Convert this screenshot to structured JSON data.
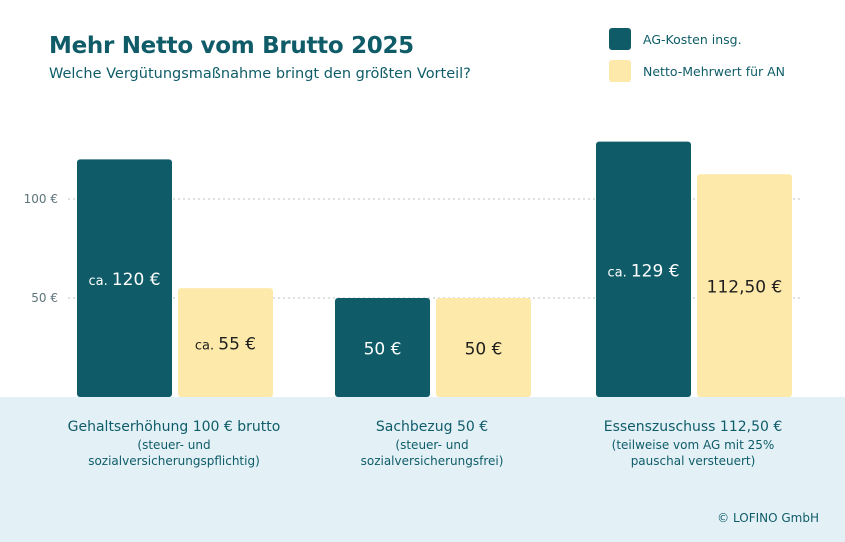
{
  "colors": {
    "primary": "#0f5c68",
    "accent": "#fde9a9",
    "panel": "#e3f1f7"
  },
  "chart_data": {
    "type": "bar",
    "title": "Mehr Netto vom Brutto 2025",
    "subtitle": "Welche Vergütungsmaßnahme bringt den größten Vorteil?",
    "categories": [
      "Gehaltserhöhung 100 € brutto",
      "Sachbezug 50 €",
      "Essenszuschuss 112,50 €"
    ],
    "category_notes": [
      "(steuer- und sozialversicherungspflichtig)",
      "(steuer- und sozialversicherungsfrei)",
      "(teilweise vom AG mit 25% pauschal versteuert)"
    ],
    "series": [
      {
        "name": "AG-Kosten insg.",
        "color": "#0f5c68",
        "label_color": "#ffffff",
        "values": [
          120,
          50,
          129
        ],
        "prefixes": [
          "ca. ",
          "",
          "ca. "
        ],
        "amounts": [
          "120 €",
          "50 €",
          "129 €"
        ]
      },
      {
        "name": "Netto-Mehrwert für AN",
        "color": "#fde9a9",
        "label_color": "#1f1f1f",
        "values": [
          55,
          50,
          112.5
        ],
        "prefixes": [
          "ca. ",
          "",
          ""
        ],
        "amounts": [
          "55 €",
          "50 €",
          "112,50 €"
        ]
      }
    ],
    "yticks": [
      50,
      100
    ],
    "ytick_labels": [
      "50 €",
      "100 €"
    ],
    "ylim": [
      0,
      140
    ],
    "grid": "dotted horizontal",
    "legend": "top-right"
  },
  "copyright": "© LOFINO GmbH"
}
